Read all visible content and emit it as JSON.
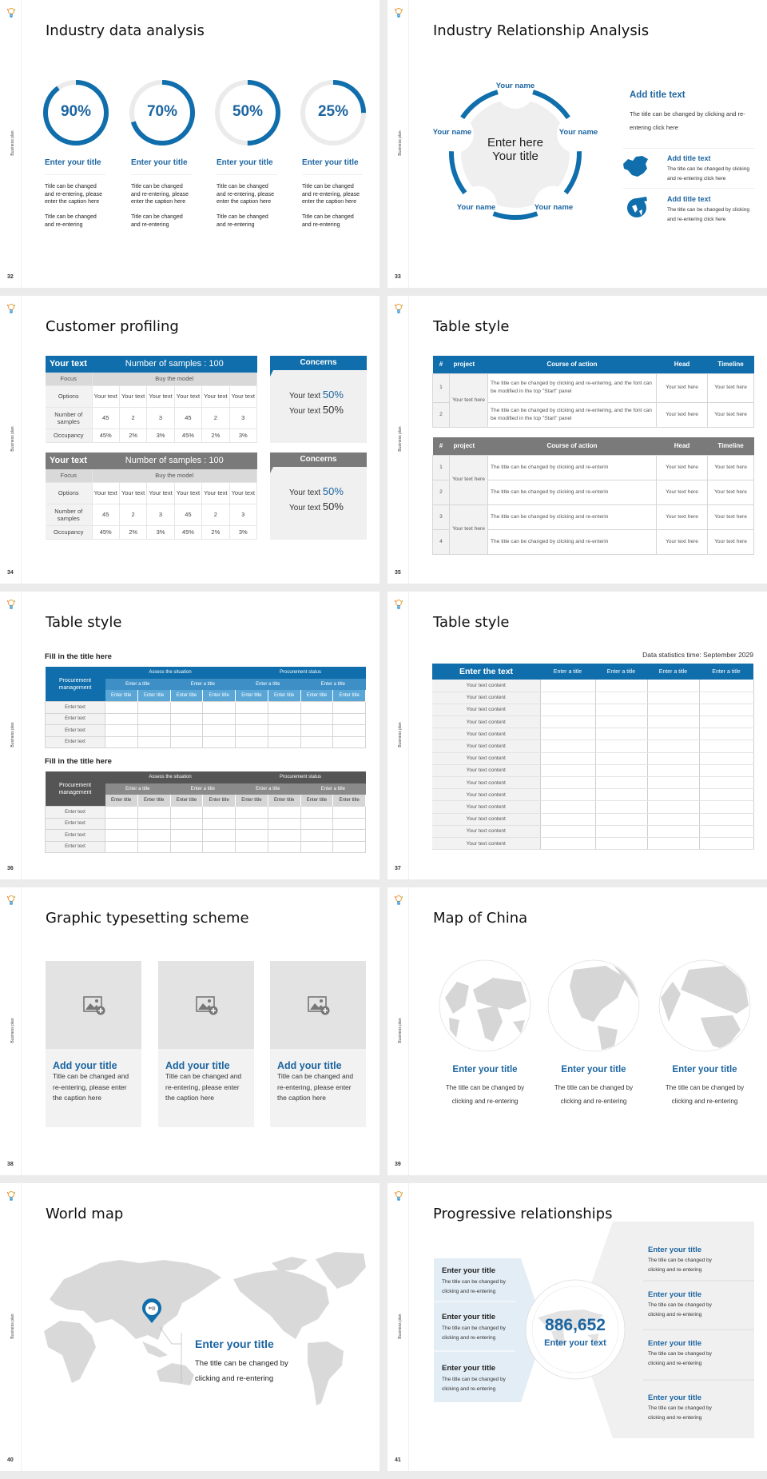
{
  "footer": "Business plan",
  "colors": {
    "primary": "#0f6eab",
    "title_blue": "#1c65a1",
    "gray_header": "#7a7a7a",
    "dark_header": "#4f4f4f",
    "panel_gray": "#f2f2f2",
    "light_blue_panel": "#e3edf5"
  },
  "s32": {
    "number": "32",
    "title": "Industry data analysis",
    "rings": [
      {
        "value": 90,
        "label": "90%",
        "title": "Enter your title",
        "caption1": "Title can be changed and re-entering, please enter the caption here",
        "caption2": "Title can be changed and re-entering"
      },
      {
        "value": 70,
        "label": "70%",
        "title": "Enter your title",
        "caption1": "Title can be changed and re-entering, please enter the caption here",
        "caption2": "Title can be changed and re-entering"
      },
      {
        "value": 50,
        "label": "50%",
        "title": "Enter your title",
        "caption1": "Title can be changed and re-entering, please enter the caption here",
        "caption2": "Title can be changed and re-entering"
      },
      {
        "value": 25,
        "label": "25%",
        "title": "Enter your title",
        "caption1": "Title can be changed and re-entering, please enter the caption here",
        "caption2": "Title can be changed and re-entering"
      }
    ]
  },
  "s33": {
    "number": "33",
    "title": "Industry Relationship Analysis",
    "names": [
      "Your name",
      "Your name",
      "Your name",
      "Your name",
      "Your name"
    ],
    "center1": "Enter here",
    "center2": "Your title",
    "main_title": "Add title text",
    "main_desc": "The title can be changed by clicking and re-entering click here",
    "items": [
      {
        "icon": "china-map-icon",
        "title": "Add title text",
        "desc": "The title can be changed by clicking and re-entering click here"
      },
      {
        "icon": "globe-icon",
        "title": "Add title text",
        "desc": "The title can be changed by clicking and re-entering click here"
      }
    ]
  },
  "s34": {
    "number": "34",
    "title": "Customer profiling",
    "tables": [
      {
        "label": "Your text",
        "samples": "Number of samples : 100",
        "focus": "Focus",
        "model": "Buy the model",
        "rows": [
          [
            "Options",
            "Your text",
            "Your text",
            "Your text",
            "Your text",
            "Your text",
            "Your text"
          ],
          [
            "Number of samples",
            "45",
            "2",
            "3",
            "45",
            "2",
            "3"
          ],
          [
            "Occupancy",
            "45%",
            "2%",
            "3%",
            "45%",
            "2%",
            "3%"
          ]
        ],
        "concerns": "Concerns",
        "lines": [
          {
            "label": "Your text",
            "value": "50%"
          },
          {
            "label": "Your text",
            "value": "50%"
          }
        ]
      },
      {
        "label": "Your text",
        "samples": "Number of samples : 100",
        "focus": "Focus",
        "model": "Buy the model",
        "rows": [
          [
            "Options",
            "Your text",
            "Your text",
            "Your text",
            "Your text",
            "Your text",
            "Your text"
          ],
          [
            "Number of samples",
            "45",
            "2",
            "3",
            "45",
            "2",
            "3"
          ],
          [
            "Occupancy",
            "45%",
            "2%",
            "3%",
            "45%",
            "2%",
            "3%"
          ]
        ],
        "concerns": "Concerns",
        "lines": [
          {
            "label": "Your text",
            "value": "50%"
          },
          {
            "label": "Your text",
            "value": "50%"
          }
        ]
      }
    ]
  },
  "s35": {
    "number": "35",
    "title": "Table style",
    "headers": [
      "#",
      "project",
      "Course of action",
      "Head",
      "Timeline"
    ],
    "tables": [
      {
        "projects": [
          {
            "name": "Your text here",
            "span": 2
          }
        ],
        "rows": [
          {
            "n": "1",
            "action": "The title can be changed by clicking and re-entering, and the font can be modified in the top \"Start\" panel",
            "head": "Your text here",
            "timeline": "Your text here"
          },
          {
            "n": "2",
            "action": "The title can be changed by clicking and re-entering, and the font can be modified in the top \"Start\" panel",
            "head": "Your text here",
            "timeline": "Your text here"
          }
        ]
      },
      {
        "projects": [
          {
            "name": "Your text here",
            "span": 2
          },
          {
            "name": "Your text here",
            "span": 2
          }
        ],
        "rows": [
          {
            "n": "1",
            "action": "The title can be changed by clicking and re-enterin",
            "head": "Your text here",
            "timeline": "Your text here"
          },
          {
            "n": "2",
            "action": "The title can be changed by clicking and re-enterin",
            "head": "Your text here",
            "timeline": "Your text here"
          },
          {
            "n": "3",
            "action": "The title can be changed by clicking and re-enterin",
            "head": "Your text here",
            "timeline": "Your text here"
          },
          {
            "n": "4",
            "action": "The title can be changed by clicking and re-enterin",
            "head": "Your text here",
            "timeline": "Your text here"
          }
        ]
      }
    ]
  },
  "s36": {
    "number": "36",
    "title": "Table style",
    "sections": [
      {
        "heading": "Fill in the title here",
        "corner": "Procurement management",
        "groups": [
          "Assess the situation",
          "Procurement status"
        ],
        "subgroups": [
          "Enter a title",
          "Enter a title",
          "Enter a title",
          "Enter a title"
        ],
        "columns": [
          "Enter title",
          "Enter title",
          "Enter title",
          "Enter title",
          "Enter title",
          "Enter title",
          "Enter title",
          "Enter title"
        ],
        "rows": [
          "Enter text",
          "Enter text",
          "Enter text",
          "Enter text"
        ]
      },
      {
        "heading": "Fill in the title here",
        "corner": "Procurement management",
        "groups": [
          "Assess the situation",
          "Procurement status"
        ],
        "subgroups": [
          "Enter a title",
          "Enter a title",
          "Enter a title",
          "Enter a title"
        ],
        "columns": [
          "Enter title",
          "Enter title",
          "Enter title",
          "Enter title",
          "Enter title",
          "Enter title",
          "Enter title",
          "Enter title"
        ],
        "rows": [
          "Enter text",
          "Enter text",
          "Enter text",
          "Enter text"
        ]
      }
    ]
  },
  "s37": {
    "number": "37",
    "title": "Table style",
    "note": "Data statistics time: September 2029",
    "headers": [
      "Enter the text",
      "Enter a title",
      "Enter a title",
      "Enter a title",
      "Enter a title"
    ],
    "rows": [
      "Your text content",
      "Your text content",
      "Your text content",
      "Your text content",
      "Your text content",
      "Your text content",
      "Your text content",
      "Your text content",
      "Your text content",
      "Your text content",
      "Your text content",
      "Your text content",
      "Your text content",
      "Your text content"
    ]
  },
  "s38": {
    "number": "38",
    "title": "Graphic typesetting scheme",
    "cards": [
      {
        "icon": "image-add-icon",
        "title": "Add your title",
        "caption": "Title can be changed and re-entering, please enter the caption here"
      },
      {
        "icon": "image-add-icon",
        "title": "Add your title",
        "caption": "Title can be changed and re-entering, please enter the caption here"
      },
      {
        "icon": "image-add-icon",
        "title": "Add your title",
        "caption": "Title can be changed and re-entering, please enter the caption here"
      }
    ]
  },
  "s39": {
    "number": "39",
    "title": "Map of China",
    "items": [
      {
        "title": "Enter your title",
        "caption": "The title can be changed by clicking and re-entering"
      },
      {
        "title": "Enter your title",
        "caption": "The title can be changed by clicking and re-entering"
      },
      {
        "title": "Enter your title",
        "caption": "The title can be changed by clicking and re-entering"
      }
    ]
  },
  "s40": {
    "number": "40",
    "title": "World map",
    "pin_label": "中国",
    "callout_title": "Enter your title",
    "callout_text": "The title can be changed by clicking and re-entering"
  },
  "s41": {
    "number": "41",
    "title": "Progressive relationships",
    "center_value": "886,652",
    "center_label": "Enter your text",
    "left_items": [
      {
        "title": "Enter your title",
        "text": "The title can be changed by clicking and re-entering"
      },
      {
        "title": "Enter your title",
        "text": "The title can be changed by clicking and re-entering"
      },
      {
        "title": "Enter your title",
        "text": "The title can be changed by clicking and re-entering"
      }
    ],
    "right_items": [
      {
        "title": "Enter your title",
        "text": "The title can be changed by clicking and re-entering"
      },
      {
        "title": "Enter your title",
        "text": "The title can be changed by clicking and re-entering"
      },
      {
        "title": "Enter your title",
        "text": "The title can be changed by clicking and re-entering"
      },
      {
        "title": "Enter your title",
        "text": "The title can be changed by clicking and re-entering"
      }
    ]
  }
}
